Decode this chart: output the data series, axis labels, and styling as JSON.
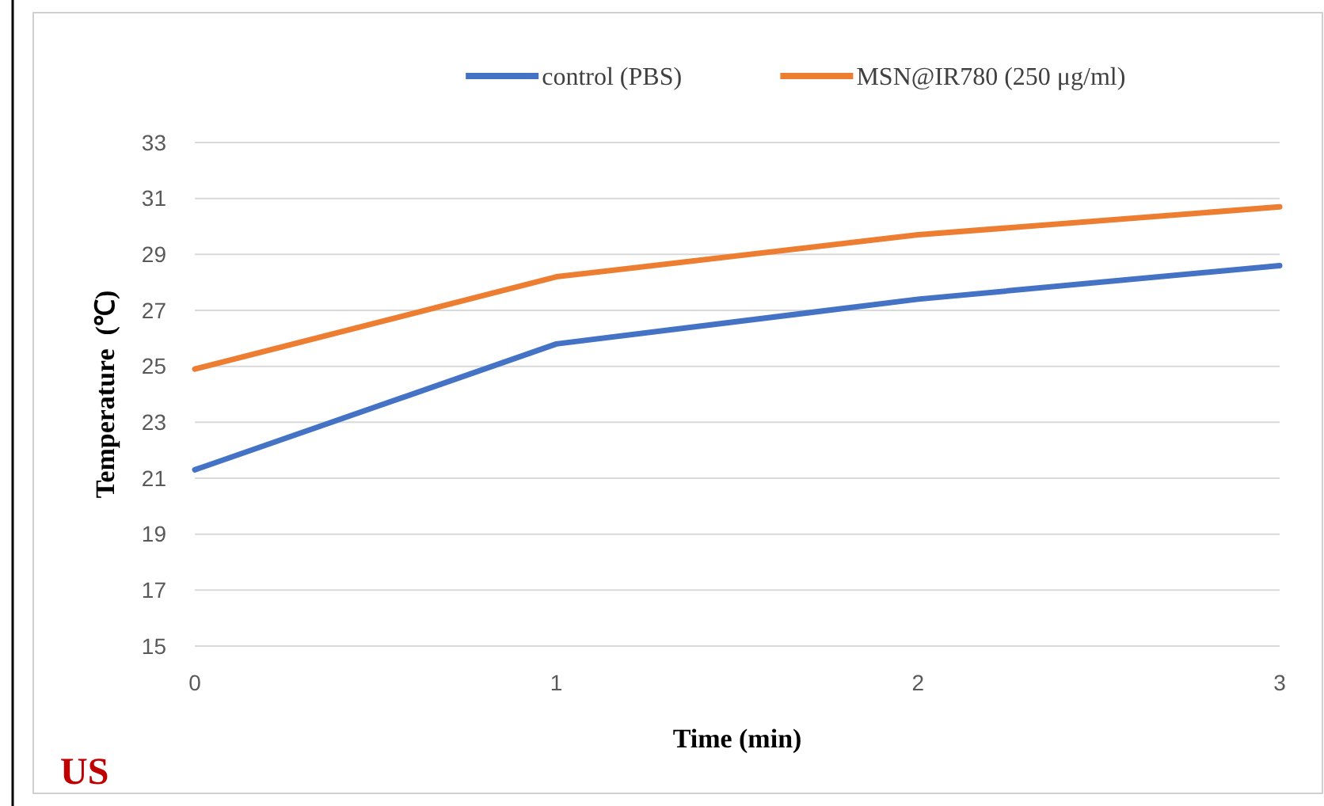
{
  "chart_data": {
    "type": "line",
    "xlabel": "Time (min)",
    "ylabel": "Temperature  (℃)",
    "x": [
      0,
      1,
      2,
      3
    ],
    "series": [
      {
        "name": "control (PBS)",
        "color": "#4472c4",
        "values": [
          21.3,
          25.8,
          27.4,
          28.6
        ]
      },
      {
        "name": "MSN@IR780 (250 μg/ml)",
        "color": "#ed7d31",
        "values": [
          24.9,
          28.2,
          29.7,
          30.7
        ]
      }
    ],
    "xlim": [
      0,
      3
    ],
    "xticks": [
      0,
      1,
      2,
      3
    ],
    "ylim": [
      15,
      33
    ],
    "yticks": [
      15,
      17,
      19,
      21,
      23,
      25,
      27,
      29,
      31,
      33
    ],
    "grid": "y",
    "legend": "top",
    "marker": "none",
    "line_style": "solid",
    "annotations": [
      "US"
    ]
  }
}
